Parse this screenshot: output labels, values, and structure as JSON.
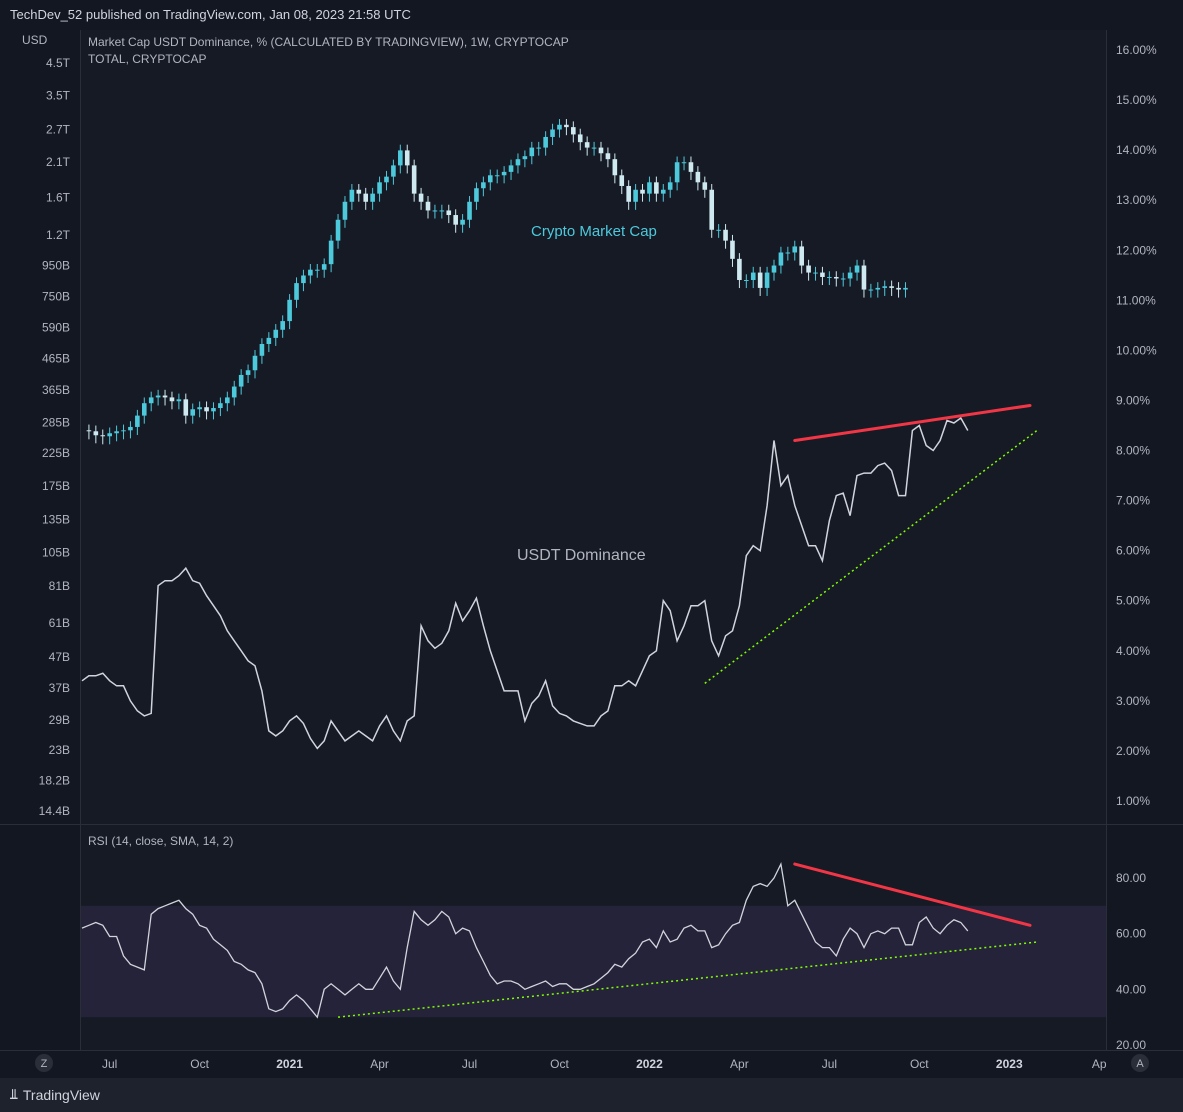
{
  "header": {
    "published_text": "TechDev_52 published on TradingView.com, Jan 08, 2023 21:58 UTC"
  },
  "footer": {
    "brand": "TradingView",
    "zoom_button": "Z",
    "auto_button": "A"
  },
  "colors": {
    "background": "#131722",
    "candle_color": "#4dc9dc",
    "dominance_line": "#d1d4dc",
    "resistance_line": "#f23645",
    "support_line": "#7fff00",
    "rsi_band": "#252339"
  },
  "chart_data": [
    {
      "type": "candlestick",
      "pane": "main",
      "title": "Market Cap USDT Dominance, % (CALCULATED BY TRADINGVIEW), 1W, CRYPTOCAP",
      "subtitle": "TOTAL, CRYPTOCAP",
      "annotation": "Crypto Market Cap",
      "left_axis_label": "USD",
      "left_axis_scale": "log",
      "left_axis_ticks": [
        "4.5T",
        "3.5T",
        "2.7T",
        "2.1T",
        "1.6T",
        "1.2T",
        "950B",
        "750B",
        "590B",
        "465B",
        "365B",
        "285B",
        "225B",
        "175B",
        "135B",
        "105B",
        "81B",
        "61B",
        "47B",
        "37B",
        "29B",
        "23B",
        "18.2B",
        "14.4B"
      ],
      "series_name": "TOTAL",
      "note": "weekly closes in billions USD, Jun 2020 to Jan 2023",
      "values": [
        268,
        266,
        258,
        256,
        262,
        266,
        268,
        275,
        300,
        330,
        345,
        350,
        345,
        335,
        340,
        300,
        315,
        320,
        310,
        318,
        330,
        345,
        375,
        410,
        425,
        475,
        520,
        545,
        580,
        620,
        730,
        830,
        880,
        920,
        920,
        960,
        1150,
        1350,
        1550,
        1700,
        1650,
        1550,
        1650,
        1800,
        1880,
        2050,
        2300,
        2050,
        1650,
        1550,
        1450,
        1450,
        1450,
        1400,
        1300,
        1350,
        1550,
        1720,
        1800,
        1900,
        1900,
        1950,
        2050,
        2150,
        2200,
        2350,
        2350,
        2550,
        2700,
        2800,
        2750,
        2600,
        2450,
        2350,
        2350,
        2250,
        2150,
        1900,
        1750,
        1550,
        1700,
        1650,
        1800,
        1650,
        1700,
        1800,
        2100,
        2100,
        1950,
        1800,
        1700,
        1250,
        1250,
        1150,
        1000,
        850,
        850,
        900,
        800,
        900,
        950,
        1050,
        1050,
        1100,
        950,
        900,
        900,
        870,
        870,
        860,
        860,
        900,
        950,
        790,
        790,
        800,
        810,
        800,
        790,
        800
      ]
    },
    {
      "type": "line",
      "pane": "main",
      "annotation": "USDT Dominance",
      "series_name": "USDT.D",
      "right_axis_ticks": [
        "16.00%",
        "15.00%",
        "14.00%",
        "13.00%",
        "12.00%",
        "11.00%",
        "10.00%",
        "9.00%",
        "8.00%",
        "7.00%",
        "6.00%",
        "5.00%",
        "4.00%",
        "3.00%",
        "2.00%",
        "1.00%"
      ],
      "ylim": [
        0.5,
        16.5
      ],
      "values": [
        3.4,
        3.5,
        3.5,
        3.55,
        3.4,
        3.3,
        3.3,
        3.0,
        2.8,
        2.7,
        2.75,
        5.3,
        5.4,
        5.4,
        5.5,
        5.65,
        5.4,
        5.35,
        5.1,
        4.9,
        4.7,
        4.4,
        4.2,
        4.0,
        3.8,
        3.7,
        3.2,
        2.4,
        2.3,
        2.4,
        2.6,
        2.7,
        2.55,
        2.25,
        2.05,
        2.2,
        2.6,
        2.4,
        2.2,
        2.3,
        2.4,
        2.3,
        2.2,
        2.5,
        2.7,
        2.4,
        2.2,
        2.6,
        2.7,
        4.5,
        4.2,
        4.05,
        4.15,
        4.4,
        4.95,
        4.6,
        4.8,
        5.05,
        4.5,
        4.0,
        3.6,
        3.2,
        3.2,
        3.2,
        2.6,
        2.95,
        3.1,
        3.4,
        2.9,
        2.75,
        2.7,
        2.6,
        2.55,
        2.5,
        2.5,
        2.7,
        2.8,
        3.3,
        3.3,
        3.4,
        3.3,
        3.6,
        3.9,
        4.0,
        5.0,
        4.8,
        4.2,
        4.5,
        4.9,
        4.9,
        5.0,
        4.2,
        3.9,
        4.3,
        4.4,
        4.9,
        5.9,
        6.1,
        6.0,
        6.9,
        8.2,
        7.3,
        7.5,
        6.9,
        6.5,
        6.1,
        6.1,
        5.8,
        6.6,
        7.1,
        7.15,
        6.7,
        7.5,
        7.55,
        7.55,
        7.7,
        7.75,
        7.6,
        7.1,
        7.1,
        8.4,
        8.5,
        8.1,
        8.0,
        8.2,
        8.6,
        8.55,
        8.65,
        8.4
      ],
      "resistance_line": {
        "x": [
          103,
          137
        ],
        "y": [
          8.2,
          8.9
        ]
      },
      "support_line": {
        "x": [
          90,
          138
        ],
        "y": [
          3.35,
          8.4
        ]
      }
    },
    {
      "type": "line",
      "pane": "rsi",
      "title": "RSI (14, close, SMA, 14, 2)",
      "series_name": "RSI",
      "axis_ticks": [
        "80.00",
        "60.00",
        "40.00",
        "20.00"
      ],
      "ylim": [
        20,
        90
      ],
      "band": [
        30,
        70
      ],
      "values": [
        62,
        63,
        64,
        63,
        59,
        59,
        52,
        49,
        48,
        47,
        67,
        69,
        70,
        71,
        72,
        69,
        67,
        63,
        62,
        58,
        56,
        54,
        50,
        49,
        47,
        46,
        42,
        33,
        32,
        33,
        36,
        38,
        36,
        33,
        30,
        40,
        42,
        40,
        38,
        40,
        42,
        40,
        40,
        44,
        48,
        43,
        40,
        55,
        68,
        65,
        63,
        65,
        68,
        66,
        60,
        62,
        61,
        55,
        50,
        45,
        42,
        43,
        43,
        42,
        40,
        41,
        42,
        43,
        41,
        42,
        42,
        40,
        40,
        41,
        42,
        44,
        46,
        49,
        48,
        51,
        53,
        57,
        58,
        55,
        61,
        57,
        58,
        62,
        63,
        61,
        61,
        55,
        56,
        60,
        63,
        64,
        72,
        77,
        78,
        77,
        80,
        85,
        70,
        72,
        67,
        62,
        57,
        55,
        55,
        52,
        58,
        62,
        60,
        55,
        60,
        61,
        60,
        62,
        62,
        56,
        56,
        64,
        66,
        62,
        60,
        63,
        65,
        64,
        61
      ],
      "resistance_line": {
        "x": [
          103,
          137
        ],
        "y": [
          85,
          63
        ]
      },
      "support_line": {
        "x": [
          37,
          138
        ],
        "y": [
          30,
          57
        ]
      }
    }
  ],
  "time_axis": {
    "labels": [
      {
        "text": "Jul",
        "bold": false,
        "week": 4
      },
      {
        "text": "Oct",
        "bold": false,
        "week": 17
      },
      {
        "text": "2021",
        "bold": true,
        "week": 30
      },
      {
        "text": "Apr",
        "bold": false,
        "week": 43
      },
      {
        "text": "Jul",
        "bold": false,
        "week": 56
      },
      {
        "text": "Oct",
        "bold": false,
        "week": 69
      },
      {
        "text": "2022",
        "bold": true,
        "week": 82
      },
      {
        "text": "Apr",
        "bold": false,
        "week": 95
      },
      {
        "text": "Jul",
        "bold": false,
        "week": 108
      },
      {
        "text": "Oct",
        "bold": false,
        "week": 121
      },
      {
        "text": "2023",
        "bold": true,
        "week": 134
      },
      {
        "text": "Ap",
        "bold": false,
        "week": 147
      }
    ]
  }
}
